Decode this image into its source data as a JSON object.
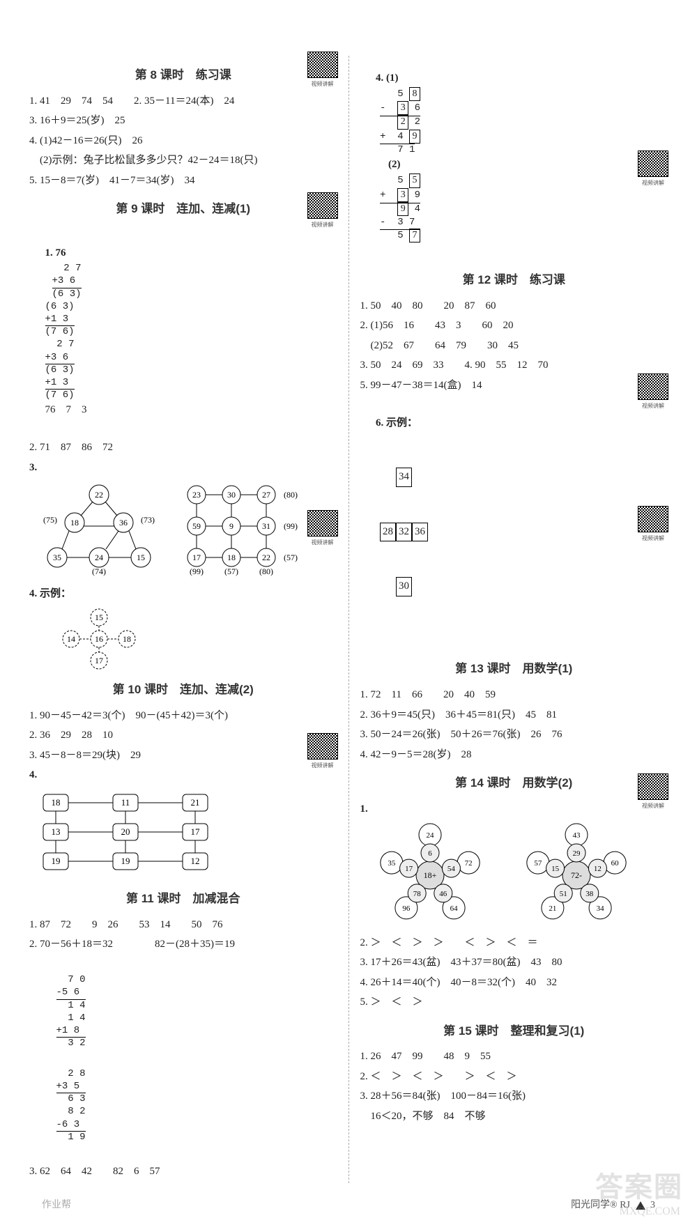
{
  "qr_label": "视频讲解",
  "footer_left": "作业帮",
  "footer_right": "阳光同学® RJ",
  "page_num": "3",
  "watermark": "答案圈",
  "watermark_url": "MXQE.COM",
  "left": {
    "l8": {
      "title": "第 8 课时　练习课",
      "r1": "1. 41　29　74　54　　2. 35－11＝24(本)　24",
      "r3": "3. 16＋9＝25(岁)　25",
      "r4a": "4. (1)42－16＝26(只)　26",
      "r4b": "　(2)示例：兔子比松鼠多多少只？42－24＝18(只)",
      "r5": "5. 15－8＝7(岁)　41－7＝34(岁)　34"
    },
    "l9": {
      "title": "第 9 课时　连加、连减(1)",
      "r1_lead": "1. 76",
      "r1_trail": "76　7　3",
      "r2": "2. 71　87　86　72",
      "r3": "3.",
      "g1_labels": [
        "22",
        "18",
        "36",
        "35",
        "24",
        "15"
      ],
      "g1_outer": [
        "(75)",
        "(73)",
        "(74)"
      ],
      "g2_labels": [
        "23",
        "30",
        "27",
        "59",
        "9",
        "31",
        "17",
        "18",
        "22"
      ],
      "g2_outer": [
        "(80)",
        "(99)",
        "(57)",
        "(99)",
        "(57)",
        "(80)"
      ],
      "r4": "4. 示例：",
      "g4": [
        "15",
        "14",
        "16",
        "18",
        "17"
      ]
    },
    "l10": {
      "title": "第 10 课时　连加、连减(2)",
      "r1": "1. 90－45－42＝3(个)　90－(45＋42)＝3(个)",
      "r2": "2. 36　29　28　10",
      "r3": "3. 45－8－8＝29(块)　29",
      "r4": "4.",
      "grid": [
        [
          "18",
          "11",
          "21"
        ],
        [
          "13",
          "20",
          "17"
        ],
        [
          "19",
          "19",
          "12"
        ]
      ]
    },
    "l11": {
      "title": "第 11 课时　加减混合",
      "r1": "1. 87　72　　9　26　　53　14　　50　76",
      "r2": "2. 70－56＋18＝32　　　　82－(28＋35)＝19",
      "r3": "3. 62　64　42　　82　6　57"
    }
  },
  "right": {
    "r4top": {
      "lead1": "4. (1)",
      "lead2": "(2)"
    },
    "l12": {
      "title": "第 12 课时　练习课",
      "r1": "1. 50　40　80　　20　87　60",
      "r2a": "2. (1)56　16　　43　3　　60　20",
      "r2b": "　(2)52　67　　64　79　　30　45",
      "r3": "3. 50　24　69　33　　4. 90　55　12　70",
      "r5": "5. 99－47－38＝14(盒)　14",
      "r6": "6. 示例：",
      "cross": [
        "34",
        "28",
        "32",
        "36",
        "30"
      ]
    },
    "l13": {
      "title": "第 13 课时　用数学(1)",
      "r1": "1. 72　11　66　　20　40　59",
      "r2": "2. 36＋9＝45(只)　36＋45＝81(只)　45　81",
      "r3": "3. 50－24＝26(张)　50＋26＝76(张)　26　76",
      "r4": "4. 42－9－5＝28(岁)　28"
    },
    "l14": {
      "title": "第 14 课时　用数学(2)",
      "r1": "1.",
      "flowerA_center": "18+",
      "flowerA_in": [
        "6",
        "54",
        "46",
        "78",
        "17"
      ],
      "flowerA_out": [
        "24",
        "72",
        "64",
        "96",
        "35"
      ],
      "flowerB_center": "72-",
      "flowerB_in": [
        "29",
        "12",
        "38",
        "51",
        "15"
      ],
      "flowerB_out": [
        "43",
        "60",
        "34",
        "21",
        "57"
      ],
      "r2": "2. ＞　＜　＞　＞　　＜　＞　＜　＝",
      "r3": "3. 17＋26＝43(盆)　43＋37＝80(盆)　43　80",
      "r4": "4. 26＋14＝40(个)　40－8＝32(个)　40　32",
      "r5": "5. ＞　＜　＞"
    },
    "l15": {
      "title": "第 15 课时　整理和复习(1)",
      "r1": "1. 26　47　99　　48　9　55",
      "r2": "2. ＜　＞　＜　＞　　＞　＜　＞",
      "r3": "3. 28＋56＝84(张)　100－84＝16(张)",
      "r3b": "　16＜20，不够　84　不够"
    }
  }
}
